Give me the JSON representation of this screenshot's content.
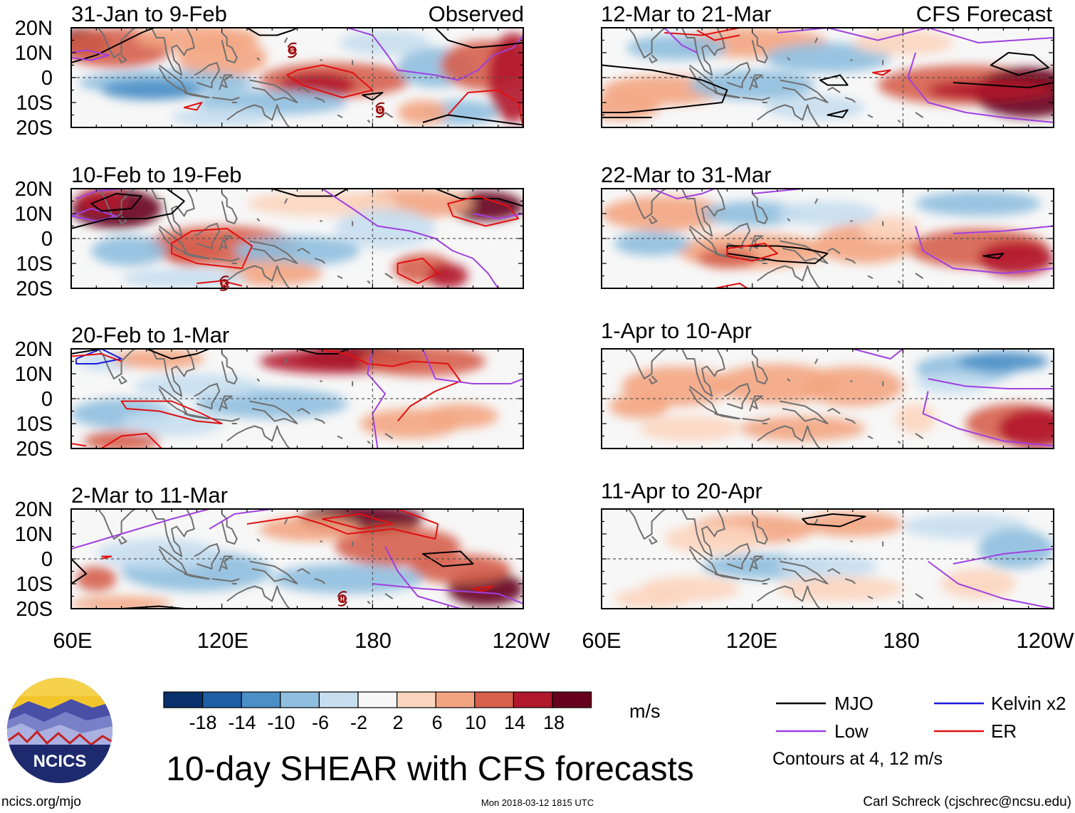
{
  "colors": {
    "scale": [
      "#08306b",
      "#1f5fa6",
      "#4a8fc6",
      "#8fbfdf",
      "#c6def0",
      "#f7f7f7",
      "#fcd5bf",
      "#f3a582",
      "#d6604d",
      "#b2182b",
      "#67001f"
    ],
    "mjo": "#000000",
    "kelvin": "#1c1cdc",
    "low": "#a040e0",
    "er": "#e01010",
    "coast": "#707070"
  },
  "map": {
    "lat_labels": [
      "20N",
      "10N",
      "0",
      "10S",
      "20S"
    ],
    "lon_labels": [
      "60E",
      "120E",
      "180",
      "120W"
    ]
  },
  "panels": {
    "left": [
      {
        "period": "31-Jan to 9-Feb",
        "tag": "Observed"
      },
      {
        "period": "10-Feb to 19-Feb",
        "tag": ""
      },
      {
        "period": "20-Feb to 1-Mar",
        "tag": ""
      },
      {
        "period": "2-Mar to 11-Mar",
        "tag": ""
      }
    ],
    "right": [
      {
        "period": "12-Mar to 21-Mar",
        "tag": "CFS Forecast"
      },
      {
        "period": "22-Mar to 31-Mar",
        "tag": ""
      },
      {
        "period": "1-Apr to 10-Apr",
        "tag": ""
      },
      {
        "period": "11-Apr to 20-Apr",
        "tag": ""
      }
    ]
  },
  "storms": [
    {
      "panel": 0,
      "label": "S",
      "lon": 148,
      "lat": 11
    },
    {
      "panel": 0,
      "label": "G",
      "lon": 183,
      "lat": -13
    },
    {
      "panel": 1,
      "label": "K",
      "lon": 121,
      "lat": -18
    },
    {
      "panel": 3,
      "label": "H",
      "lon": 168,
      "lat": -16
    }
  ],
  "colorbar": {
    "ticks": [
      "-18",
      "-14",
      "-10",
      "-6",
      "-2",
      "2",
      "6",
      "10",
      "14",
      "18"
    ],
    "units": "m/s"
  },
  "legend": {
    "items": [
      {
        "label": "MJO",
        "key": "mjo"
      },
      {
        "label": "Kelvin x2",
        "key": "kelvin"
      },
      {
        "label": "Low",
        "key": "low"
      },
      {
        "label": "ER",
        "key": "er"
      }
    ],
    "note": "Contours at 4, 12 m/s"
  },
  "logo": {
    "text": "NCICS"
  },
  "title": "10-day SHEAR with CFS forecasts",
  "footer": {
    "site": "ncics.org/mjo",
    "timestamp": "Mon 2018-03-12 1815 UTC",
    "credit": "Carl Schreck (cjschrec@ncsu.edu)"
  }
}
